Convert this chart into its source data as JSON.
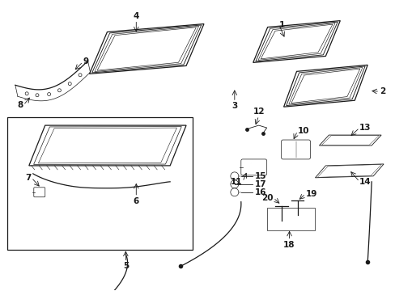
{
  "bg_color": "#ffffff",
  "line_color": "#1a1a1a",
  "fig_width": 4.89,
  "fig_height": 3.6,
  "dpi": 100,
  "panel_lw": 0.9,
  "thin_lw": 0.5
}
